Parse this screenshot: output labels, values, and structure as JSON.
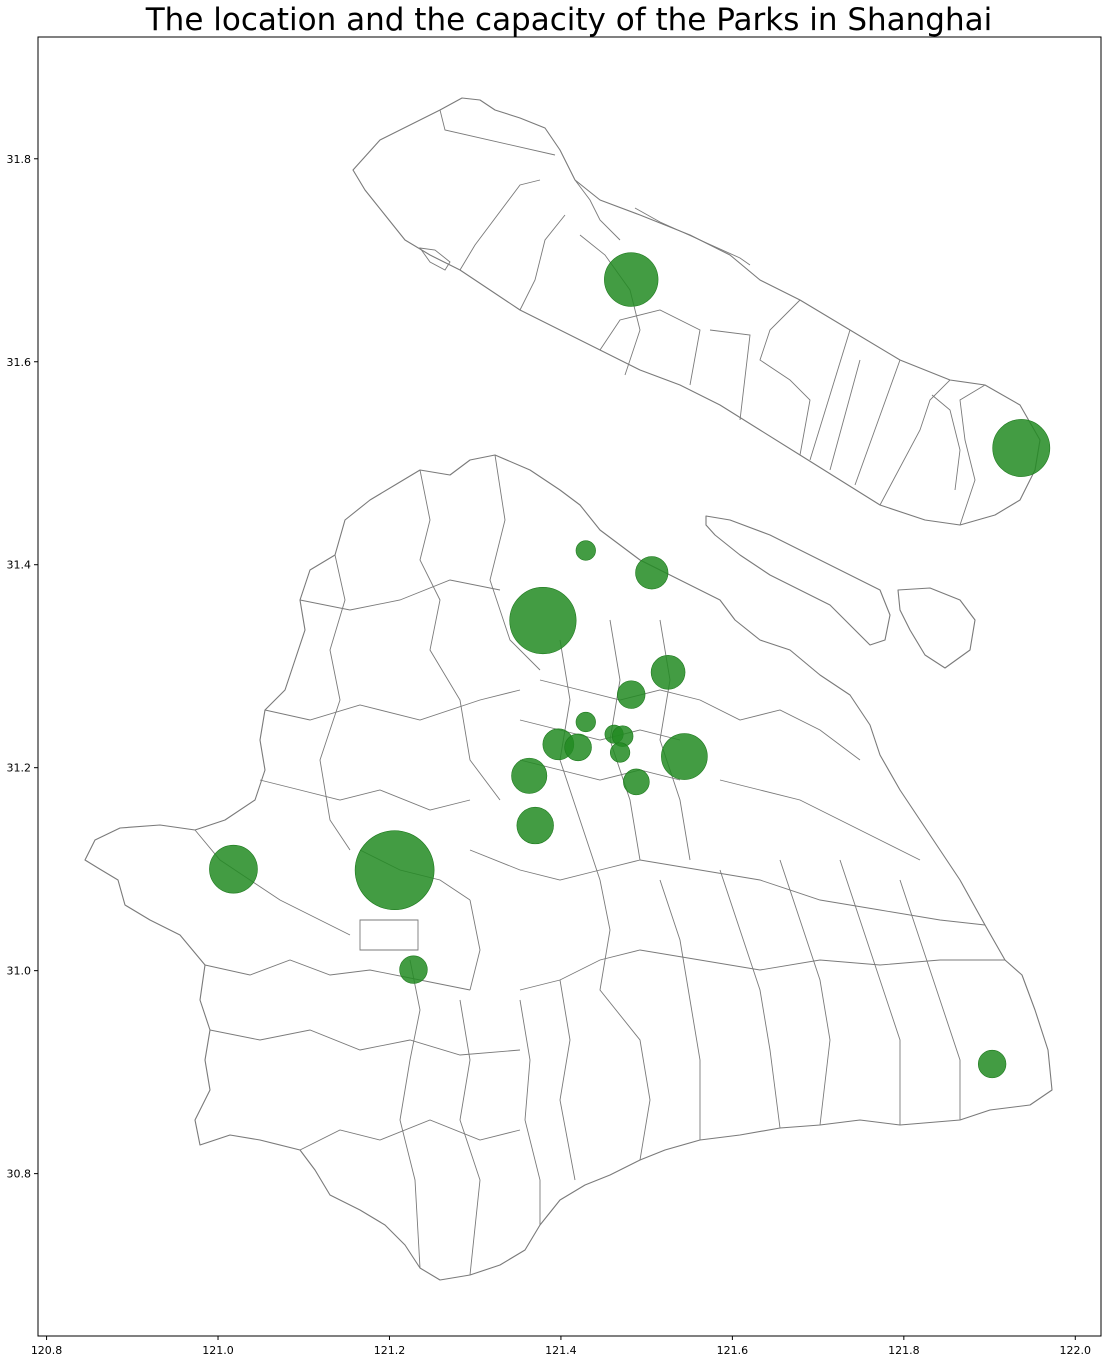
{
  "chart_data": {
    "type": "scatter",
    "title": "The location and the capacity of the Parks in Shanghai",
    "xlabel": "",
    "ylabel": "",
    "xlim": [
      120.79,
      122.03
    ],
    "ylim": [
      30.64,
      31.92
    ],
    "xticks": [
      120.8,
      121.0,
      121.2,
      121.4,
      121.6,
      121.8,
      122.0
    ],
    "xtick_labels": [
      "120.8",
      "121.0",
      "121.2",
      "121.4",
      "121.6",
      "121.8",
      "122.0"
    ],
    "yticks": [
      30.8,
      31.0,
      31.2,
      31.4,
      31.6,
      31.8
    ],
    "ytick_labels": [
      "30.8",
      "31.0",
      "31.2",
      "31.4",
      "31.6",
      "31.8"
    ],
    "grid": false,
    "colors": {
      "park_fill": "#228b22",
      "boundary": "#7a7a7a"
    },
    "points": [
      {
        "x": 121.482,
        "y": 31.681,
        "size": 3
      },
      {
        "x": 121.937,
        "y": 31.515,
        "size": 3.4
      },
      {
        "x": 121.429,
        "y": 31.414,
        "size": 0.4
      },
      {
        "x": 121.506,
        "y": 31.392,
        "size": 1.1
      },
      {
        "x": 121.379,
        "y": 31.345,
        "size": 4.6
      },
      {
        "x": 121.525,
        "y": 31.294,
        "size": 1.2
      },
      {
        "x": 121.482,
        "y": 31.272,
        "size": 0.8
      },
      {
        "x": 121.429,
        "y": 31.245,
        "size": 0.4
      },
      {
        "x": 121.462,
        "y": 31.233,
        "size": 0.35
      },
      {
        "x": 121.472,
        "y": 31.231,
        "size": 0.45
      },
      {
        "x": 121.397,
        "y": 31.223,
        "size": 1.0
      },
      {
        "x": 121.42,
        "y": 31.22,
        "size": 0.75
      },
      {
        "x": 121.469,
        "y": 31.215,
        "size": 0.4
      },
      {
        "x": 121.544,
        "y": 31.211,
        "size": 2.2
      },
      {
        "x": 121.363,
        "y": 31.192,
        "size": 1.3
      },
      {
        "x": 121.488,
        "y": 31.186,
        "size": 0.7
      },
      {
        "x": 121.37,
        "y": 31.143,
        "size": 1.4
      },
      {
        "x": 121.018,
        "y": 31.1,
        "size": 2.4
      },
      {
        "x": 121.206,
        "y": 31.099,
        "size": 6.5
      },
      {
        "x": 121.228,
        "y": 31.001,
        "size": 0.8
      },
      {
        "x": 121.903,
        "y": 30.908,
        "size": 0.8
      }
    ]
  }
}
